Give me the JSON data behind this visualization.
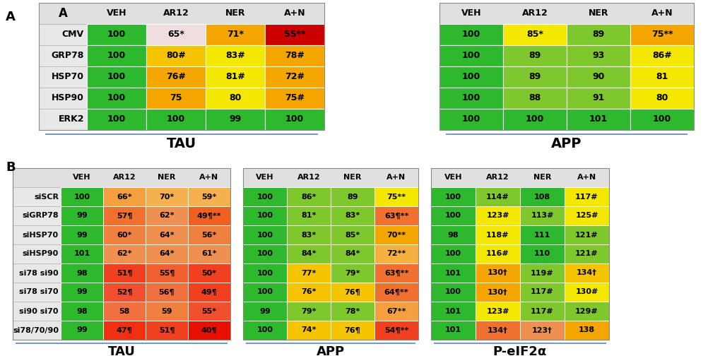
{
  "panel_A_tau": {
    "rows": [
      "CMV",
      "GRP78",
      "HSP70",
      "HSP90",
      "ERK2"
    ],
    "cols": [
      "VEH",
      "AR12",
      "NER",
      "A+N"
    ],
    "values": [
      [
        "100",
        "65*",
        "71*",
        "55**"
      ],
      [
        "100",
        "80#",
        "83#",
        "78#"
      ],
      [
        "100",
        "76#",
        "81#",
        "72#"
      ],
      [
        "100",
        "75",
        "80",
        "75#"
      ],
      [
        "100",
        "100",
        "99",
        "100"
      ]
    ],
    "colors": [
      [
        "#2db82d",
        "#f0dde0",
        "#f5a500",
        "#cc0000"
      ],
      [
        "#2db82d",
        "#f5c400",
        "#f5e800",
        "#f5a500"
      ],
      [
        "#2db82d",
        "#f5a500",
        "#f5e800",
        "#f5a500"
      ],
      [
        "#2db82d",
        "#f5a500",
        "#f5e800",
        "#f5a500"
      ],
      [
        "#2db82d",
        "#2db82d",
        "#2db82d",
        "#2db82d"
      ]
    ]
  },
  "panel_A_app": {
    "rows": [
      "CMV",
      "GRP78",
      "HSP70",
      "HSP90",
      "ERK2"
    ],
    "cols": [
      "VEH",
      "AR12",
      "NER",
      "A+N"
    ],
    "values": [
      [
        "100",
        "85*",
        "89",
        "75**"
      ],
      [
        "100",
        "89",
        "93",
        "86#"
      ],
      [
        "100",
        "89",
        "90",
        "81"
      ],
      [
        "100",
        "88",
        "91",
        "80"
      ],
      [
        "100",
        "100",
        "101",
        "100"
      ]
    ],
    "colors": [
      [
        "#2db82d",
        "#f5e800",
        "#7ec82d",
        "#f5a500"
      ],
      [
        "#2db82d",
        "#7ec82d",
        "#7ec82d",
        "#f5e800"
      ],
      [
        "#2db82d",
        "#7ec82d",
        "#7ec82d",
        "#f5e800"
      ],
      [
        "#2db82d",
        "#7ec82d",
        "#7ec82d",
        "#f5e800"
      ],
      [
        "#2db82d",
        "#2db82d",
        "#2db82d",
        "#2db82d"
      ]
    ]
  },
  "panel_B_tau": {
    "rows": [
      "siSCR",
      "siGRP78",
      "siHSP70",
      "siHSP90",
      "si78 si90",
      "si78 si70",
      "si90 si70",
      "si78/70/90"
    ],
    "cols": [
      "VEH",
      "AR12",
      "NER",
      "A+N"
    ],
    "values": [
      [
        "100",
        "66*",
        "70*",
        "59*"
      ],
      [
        "99",
        "57¶",
        "62*",
        "49¶**"
      ],
      [
        "99",
        "60*",
        "64*",
        "56*"
      ],
      [
        "101",
        "62*",
        "64*",
        "61*"
      ],
      [
        "98",
        "51¶",
        "55¶",
        "50*"
      ],
      [
        "99",
        "52¶",
        "56¶",
        "49¶"
      ],
      [
        "98",
        "58",
        "59",
        "55*"
      ],
      [
        "99",
        "47¶",
        "51¶",
        "40¶"
      ]
    ],
    "colors": [
      [
        "#2db82d",
        "#f5a040",
        "#f5b050",
        "#f5b050"
      ],
      [
        "#2db82d",
        "#f07030",
        "#f09050",
        "#f06020"
      ],
      [
        "#2db82d",
        "#f08040",
        "#f09050",
        "#f08040"
      ],
      [
        "#2db82d",
        "#f09050",
        "#f09050",
        "#f09050"
      ],
      [
        "#2db82d",
        "#f04020",
        "#f06030",
        "#f04020"
      ],
      [
        "#2db82d",
        "#f05030",
        "#f07040",
        "#f04020"
      ],
      [
        "#2db82d",
        "#f07040",
        "#f08040",
        "#f05030"
      ],
      [
        "#2db82d",
        "#f03010",
        "#f04020",
        "#e81000"
      ]
    ]
  },
  "panel_B_app": {
    "rows": [
      "siSCR",
      "siGRP78",
      "siHSP70",
      "siHSP90",
      "si78 si90",
      "si78 si70",
      "si90 si70",
      "si78/70/90"
    ],
    "cols": [
      "VEH",
      "AR12",
      "NER",
      "A+N"
    ],
    "values": [
      [
        "100",
        "86*",
        "89",
        "75**"
      ],
      [
        "100",
        "81*",
        "83*",
        "63¶**"
      ],
      [
        "100",
        "83*",
        "85*",
        "70**"
      ],
      [
        "100",
        "84*",
        "84*",
        "72**"
      ],
      [
        "100",
        "77*",
        "79*",
        "63¶**"
      ],
      [
        "100",
        "76*",
        "76¶",
        "64¶**"
      ],
      [
        "99",
        "79*",
        "78*",
        "67**"
      ],
      [
        "100",
        "74*",
        "76¶",
        "54¶**"
      ]
    ],
    "colors": [
      [
        "#2db82d",
        "#7ec82d",
        "#7ec82d",
        "#f5e800"
      ],
      [
        "#2db82d",
        "#7ec82d",
        "#7ec82d",
        "#f07030"
      ],
      [
        "#2db82d",
        "#7ec82d",
        "#7ec82d",
        "#f5a500"
      ],
      [
        "#2db82d",
        "#7ec82d",
        "#7ec82d",
        "#f5b040"
      ],
      [
        "#2db82d",
        "#f5c400",
        "#7ec82d",
        "#f07030"
      ],
      [
        "#2db82d",
        "#f5c400",
        "#f5c400",
        "#f07030"
      ],
      [
        "#2db82d",
        "#7ec82d",
        "#7ec82d",
        "#f5a040"
      ],
      [
        "#2db82d",
        "#f5c400",
        "#f5c400",
        "#f04020"
      ]
    ]
  },
  "panel_B_peif2a": {
    "rows": [
      "siSCR",
      "siGRP78",
      "siHSP70",
      "siHSP90",
      "si78 si90",
      "si78 si70",
      "si90 si70",
      "si78/70/90"
    ],
    "cols": [
      "VEH",
      "AR12",
      "NER",
      "A+N"
    ],
    "values": [
      [
        "100",
        "114#",
        "108",
        "117#"
      ],
      [
        "100",
        "123#",
        "113#",
        "125#"
      ],
      [
        "98",
        "118#",
        "111",
        "121#"
      ],
      [
        "100",
        "116#",
        "110",
        "121#"
      ],
      [
        "101",
        "130†",
        "119#",
        "134†"
      ],
      [
        "100",
        "130†",
        "117#",
        "130#"
      ],
      [
        "101",
        "123#",
        "117#",
        "129#"
      ],
      [
        "101",
        "134†",
        "123†",
        "138"
      ]
    ],
    "colors": [
      [
        "#2db82d",
        "#7ec82d",
        "#2db82d",
        "#f5e800"
      ],
      [
        "#2db82d",
        "#f5e800",
        "#7ec82d",
        "#f5e800"
      ],
      [
        "#2db82d",
        "#f5e800",
        "#2db82d",
        "#7ec82d"
      ],
      [
        "#2db82d",
        "#f5e800",
        "#2db82d",
        "#7ec82d"
      ],
      [
        "#2db82d",
        "#f5a500",
        "#7ec82d",
        "#f5c400"
      ],
      [
        "#2db82d",
        "#f5a500",
        "#7ec82d",
        "#f5e800"
      ],
      [
        "#2db82d",
        "#f5e800",
        "#7ec82d",
        "#7ec82d"
      ],
      [
        "#2db82d",
        "#f07030",
        "#f09050",
        "#f5a500"
      ]
    ]
  }
}
